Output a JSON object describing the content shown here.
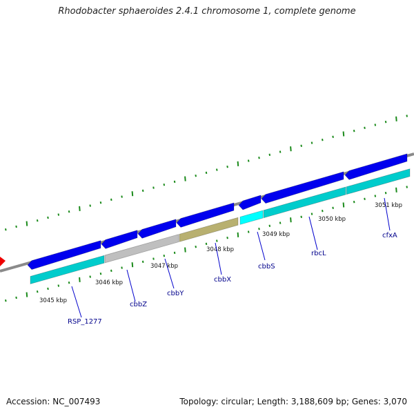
{
  "title": "Rhodobacter sphaeroides 2.4.1 chromosome 1, complete genome",
  "footer": {
    "accession": "Accession: NC_007493",
    "summary": "Topology: circular; Length: 3,188,609 bp; Genes: 3,070"
  },
  "colors": {
    "backbone": "#808080",
    "forward_feature": "#0000ee",
    "cds_cyan": "#00cccc",
    "cds_grey": "#bfbfbf",
    "cds_khaki": "#b8b070",
    "cds_bright_cyan": "#00ffff",
    "tick": "#1a8a1a",
    "label": "#00008b",
    "marker_red": "#ee0000"
  },
  "ticks": [
    {
      "label": "3045 kbp",
      "position_kbp": 3045
    },
    {
      "label": "3046 kbp",
      "position_kbp": 3046
    },
    {
      "label": "3047 kbp",
      "position_kbp": 3047
    },
    {
      "label": "3048 kbp",
      "position_kbp": 3048
    },
    {
      "label": "3049 kbp",
      "position_kbp": 3049
    },
    {
      "label": "3050 kbp",
      "position_kbp": 3050
    },
    {
      "label": "3051 kbp",
      "position_kbp": 3051
    }
  ],
  "genes": [
    {
      "name": "RSP_1277"
    },
    {
      "name": "cbbZ"
    },
    {
      "name": "cbbY"
    },
    {
      "name": "cbbX"
    },
    {
      "name": "cbbS"
    },
    {
      "name": "rbcL"
    },
    {
      "name": "cfxA"
    }
  ]
}
